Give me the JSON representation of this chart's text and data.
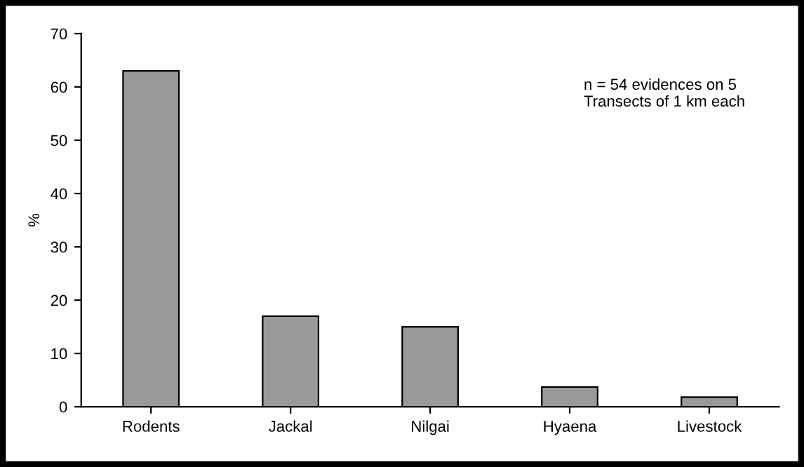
{
  "chart_data": {
    "type": "bar",
    "ylabel": "%",
    "categories": [
      "Rodents",
      "Jackal",
      "Nilgai",
      "Hyaena",
      "Livestock"
    ],
    "values": [
      63,
      17,
      15,
      3.7,
      1.8
    ],
    "color": "#999999",
    "ylim": [
      0,
      70
    ],
    "yticks": [
      0,
      10,
      20,
      30,
      40,
      50,
      60,
      70
    ],
    "annotations": [
      "n = 54 evidences on 5\nTransects of 1 km each"
    ],
    "grid": false,
    "legend": false
  }
}
